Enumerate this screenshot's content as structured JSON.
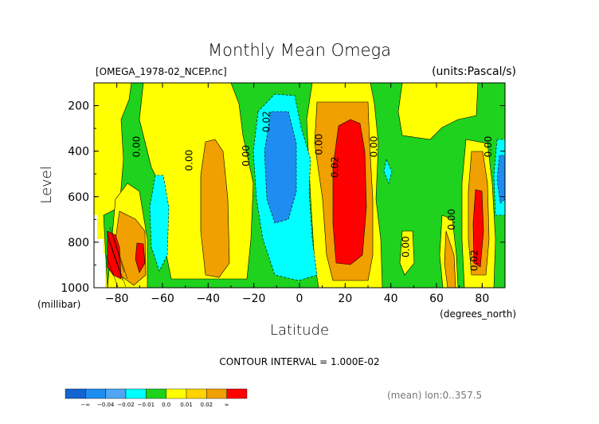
{
  "chart_data": {
    "type": "heatmap",
    "title": "Monthly Mean Omega",
    "file_label": "[OMEGA_1978-02_NCEP.nc]",
    "units_label": "(units:Pascal/s)",
    "xlabel": "Latitude",
    "x_unit": "(degrees_north)",
    "ylabel": "Level",
    "y_unit": "(millibar)",
    "xlim": [
      -90,
      90
    ],
    "ylim": [
      1000,
      100
    ],
    "x_ticks": [
      "-80",
      "-60",
      "-40",
      "-20",
      "0",
      "20",
      "40",
      "60",
      "80"
    ],
    "y_ticks": [
      "200",
      "400",
      "600",
      "800",
      "1000"
    ],
    "contour_interval": "CONTOUR INTERVAL = 1.000E-02",
    "footnote": "(mean) lon:0..357.5",
    "contour_labels": [
      {
        "text": "0.00",
        "lat": -70,
        "level": 380
      },
      {
        "text": "0.00",
        "lat": -47,
        "level": 440
      },
      {
        "text": "0.00",
        "lat": -22,
        "level": 420
      },
      {
        "text": "0.02",
        "lat": -13,
        "level": 270
      },
      {
        "text": "0.00",
        "lat": 10,
        "level": 370
      },
      {
        "text": "0.02",
        "lat": 17,
        "level": 470
      },
      {
        "text": "0.00",
        "lat": 34,
        "level": 380
      },
      {
        "text": "0.00",
        "lat": 48,
        "level": 820
      },
      {
        "text": "0.00",
        "lat": 68,
        "level": 700
      },
      {
        "text": "0.00",
        "lat": 84,
        "level": 380
      },
      {
        "text": "0.02",
        "lat": 78,
        "level": 880
      }
    ],
    "legend": {
      "colors": [
        "#1464d2",
        "#1e8cf0",
        "#50a5f5",
        "#00ffff",
        "#1ed21e",
        "#ffff00",
        "#ffd200",
        "#f0a000",
        "#ff0000"
      ],
      "labels": [
        "-∞",
        "-0.04",
        "-0.02",
        "-0.01",
        "0.0",
        "0.01",
        "0.02",
        "∞"
      ]
    }
  }
}
